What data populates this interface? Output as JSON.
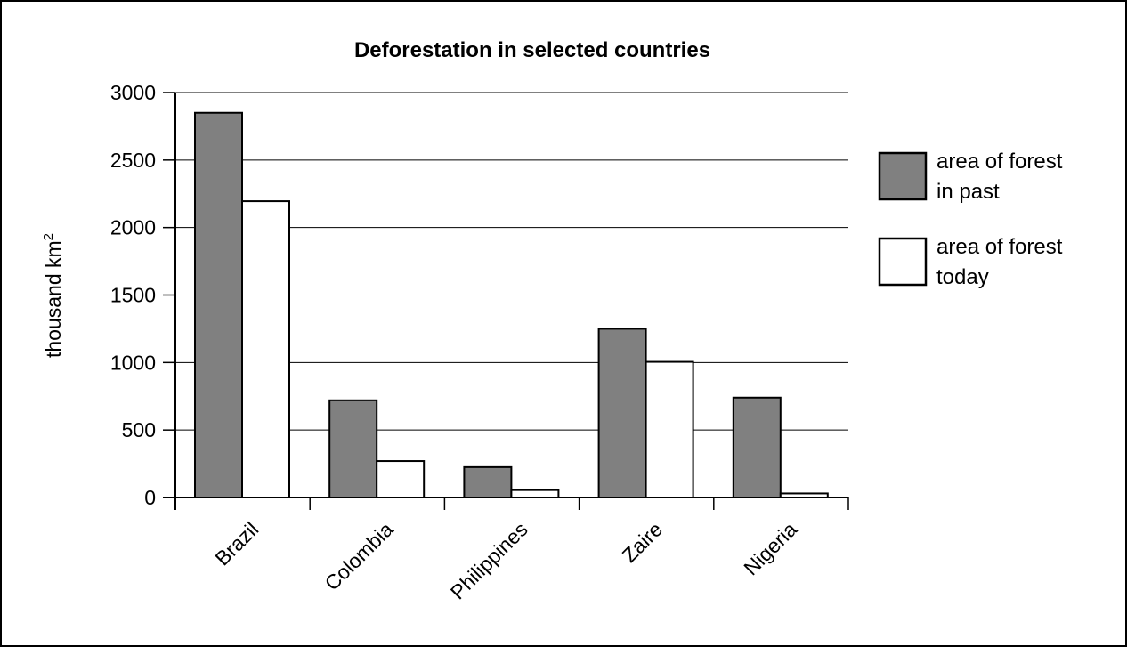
{
  "chart_data": {
    "type": "bar",
    "title": "Deforestation in selected countries",
    "ylabel": "thousand km",
    "ylabel_superscript": "2",
    "xlabel": "",
    "categories": [
      "Brazil",
      "Colombia",
      "Philippines",
      "Zaire",
      "Nigeria"
    ],
    "series": [
      {
        "name": "area of forest in past",
        "legend_lines": [
          "area of forest",
          "in past"
        ],
        "color": "#808080",
        "values": [
          2850,
          720,
          225,
          1250,
          740
        ]
      },
      {
        "name": "area of forest today",
        "legend_lines": [
          "area of forest",
          "today"
        ],
        "color": "#ffffff",
        "values": [
          2195,
          270,
          55,
          1005,
          30
        ]
      }
    ],
    "ylim": [
      0,
      3000
    ],
    "yticks": [
      0,
      500,
      1000,
      1500,
      2000,
      2500,
      3000
    ],
    "grid": true,
    "legend_position": "right"
  }
}
